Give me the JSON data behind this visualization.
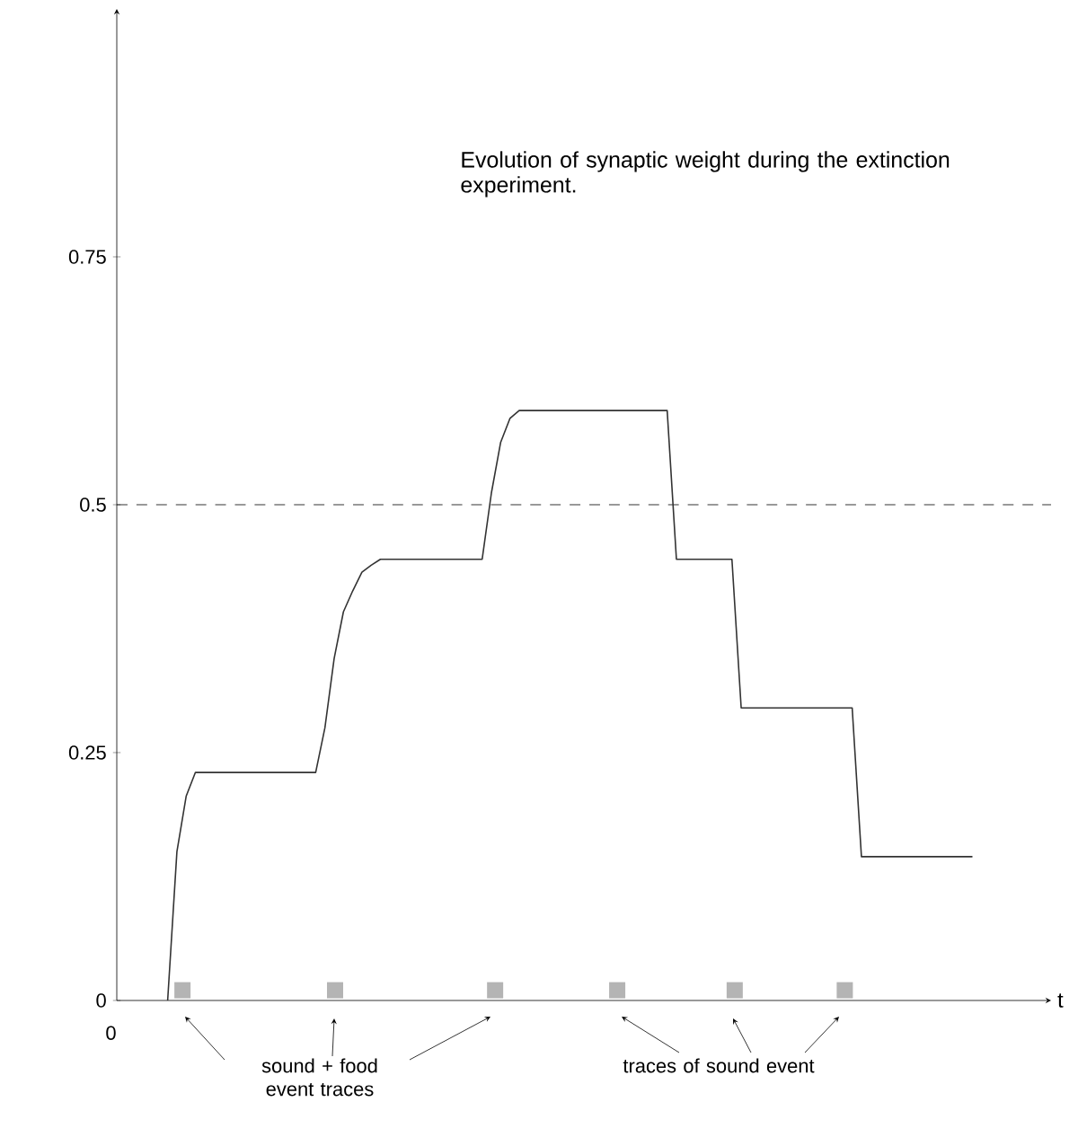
{
  "chart_data": {
    "type": "line",
    "xlabel": "t",
    "ylim": [
      0,
      1.0
    ],
    "yticks": [
      {
        "value": 0,
        "label": "0"
      },
      {
        "value": 0.25,
        "label": "0.25"
      },
      {
        "value": 0.5,
        "label": "0.5"
      },
      {
        "value": 0.75,
        "label": "0.75"
      }
    ],
    "categories": [
      null,
      null,
      null,
      null,
      null,
      null,
      null,
      null,
      null,
      null,
      null,
      null,
      null,
      null,
      null,
      null,
      null,
      null,
      null,
      null,
      null,
      null,
      null,
      null,
      null,
      null,
      null,
      null,
      null,
      null,
      null,
      null,
      null,
      null,
      null,
      null,
      null,
      null,
      null,
      null,
      null,
      null,
      null,
      null,
      null,
      null,
      null,
      null,
      null,
      null,
      null,
      null,
      null,
      null,
      null,
      null,
      null,
      null,
      null,
      null,
      null,
      null,
      null,
      null,
      null,
      null,
      null,
      null,
      null,
      null,
      null,
      null,
      null,
      null,
      null,
      null,
      null,
      null,
      null,
      null,
      null,
      null,
      null,
      null,
      null,
      null,
      null,
      null,
      null,
      null,
      null,
      null,
      null,
      null,
      null,
      null,
      null,
      null,
      null,
      null,
      null
    ],
    "annotations": [
      "Evolution of synaptic weight during the extinction experiment.",
      "sound + food event traces",
      "traces of sound event",
      "0"
    ],
    "series": [
      {
        "color": "#333333",
        "values": [
          null,
          null,
          null,
          null,
          null,
          0,
          0.15,
          0.206,
          0.23,
          0.23,
          0.23,
          0.23,
          0.23,
          0.23,
          0.23,
          0.23,
          0.23,
          0.23,
          0.23,
          0.23,
          0.23,
          0.23,
          0.275,
          0.345,
          0.392,
          0.413,
          0.432,
          0.439,
          0.445,
          0.445,
          0.445,
          0.445,
          0.445,
          0.445,
          0.445,
          0.445,
          0.445,
          0.445,
          0.445,
          0.445,
          0.512,
          0.563,
          0.587,
          0.595,
          0.595,
          0.595,
          0.595,
          0.595,
          0.595,
          0.595,
          0.595,
          0.595,
          0.595,
          0.595,
          0.595,
          0.595,
          0.595,
          0.595,
          0.595,
          0.595,
          0.445,
          0.445,
          0.445,
          0.445,
          0.445,
          0.445,
          0.445,
          0.295,
          0.295,
          0.295,
          0.295,
          0.295,
          0.295,
          0.295,
          0.295,
          0.295,
          0.295,
          0.295,
          0.295,
          0.295,
          0.145,
          0.145,
          0.145,
          0.145,
          0.145,
          0.145,
          0.145,
          0.145,
          0.145,
          0.145,
          0.145,
          0.145,
          0.145,
          null,
          null,
          null,
          null,
          null,
          null,
          null,
          null
        ]
      }
    ],
    "ref_lines": [
      {
        "axis": "y",
        "value": 0.5,
        "color": "#000000",
        "line_style": "dashed"
      }
    ]
  }
}
